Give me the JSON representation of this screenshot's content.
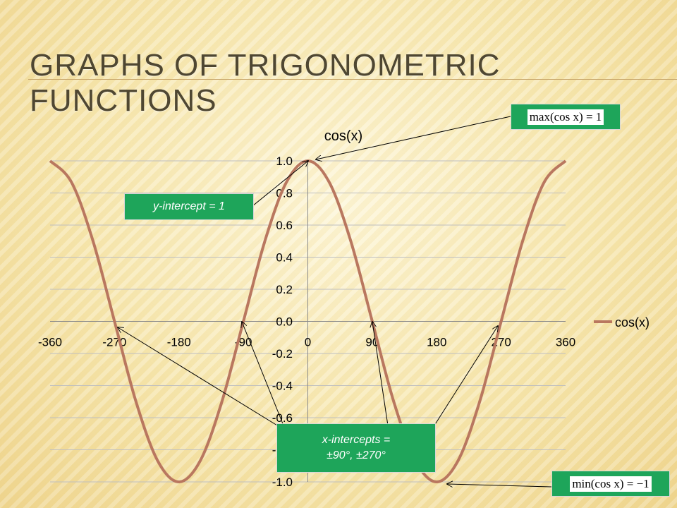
{
  "slide": {
    "title": "Graphs of Trigonometric Functions"
  },
  "callouts": {
    "y_intercept": "y-intercept = 1",
    "x_intercepts_line1": "x-intercepts =",
    "x_intercepts_line2": "±90°, ±270°",
    "max_formula": "max(cos x) = 1",
    "min_formula": "min(cos x) = −1"
  },
  "colors": {
    "series": "#b9775f",
    "callout_green": "#1ea55a",
    "grid": "#bfbfbf"
  },
  "chart_data": {
    "type": "line",
    "title": "cos(x)",
    "xlabel": "",
    "ylabel": "",
    "xlim": [
      -360,
      360
    ],
    "ylim": [
      -1.0,
      1.0
    ],
    "x_ticks": [
      "-360",
      "-270",
      "-180",
      "-90",
      "0",
      "90",
      "180",
      "270",
      "360"
    ],
    "y_ticks": [
      "1.0",
      "0.8",
      "0.6",
      "0.4",
      "0.2",
      "0.0",
      "-0.2",
      "-0.4",
      "-0.6",
      "-0.8",
      "-1.0"
    ],
    "grid": true,
    "legend_position": "right",
    "series": [
      {
        "name": "cos(x)",
        "x": [
          -360,
          -330,
          -300,
          -270,
          -240,
          -210,
          -180,
          -150,
          -120,
          -90,
          -60,
          -30,
          0,
          30,
          60,
          90,
          120,
          150,
          180,
          210,
          240,
          270,
          300,
          330,
          360
        ],
        "y": [
          1.0,
          0.866,
          0.5,
          0.0,
          -0.5,
          -0.866,
          -1.0,
          -0.866,
          -0.5,
          0.0,
          0.5,
          0.866,
          1.0,
          0.866,
          0.5,
          0.0,
          -0.5,
          -0.866,
          -1.0,
          -0.866,
          -0.5,
          0.0,
          0.5,
          0.866,
          1.0
        ]
      }
    ]
  }
}
